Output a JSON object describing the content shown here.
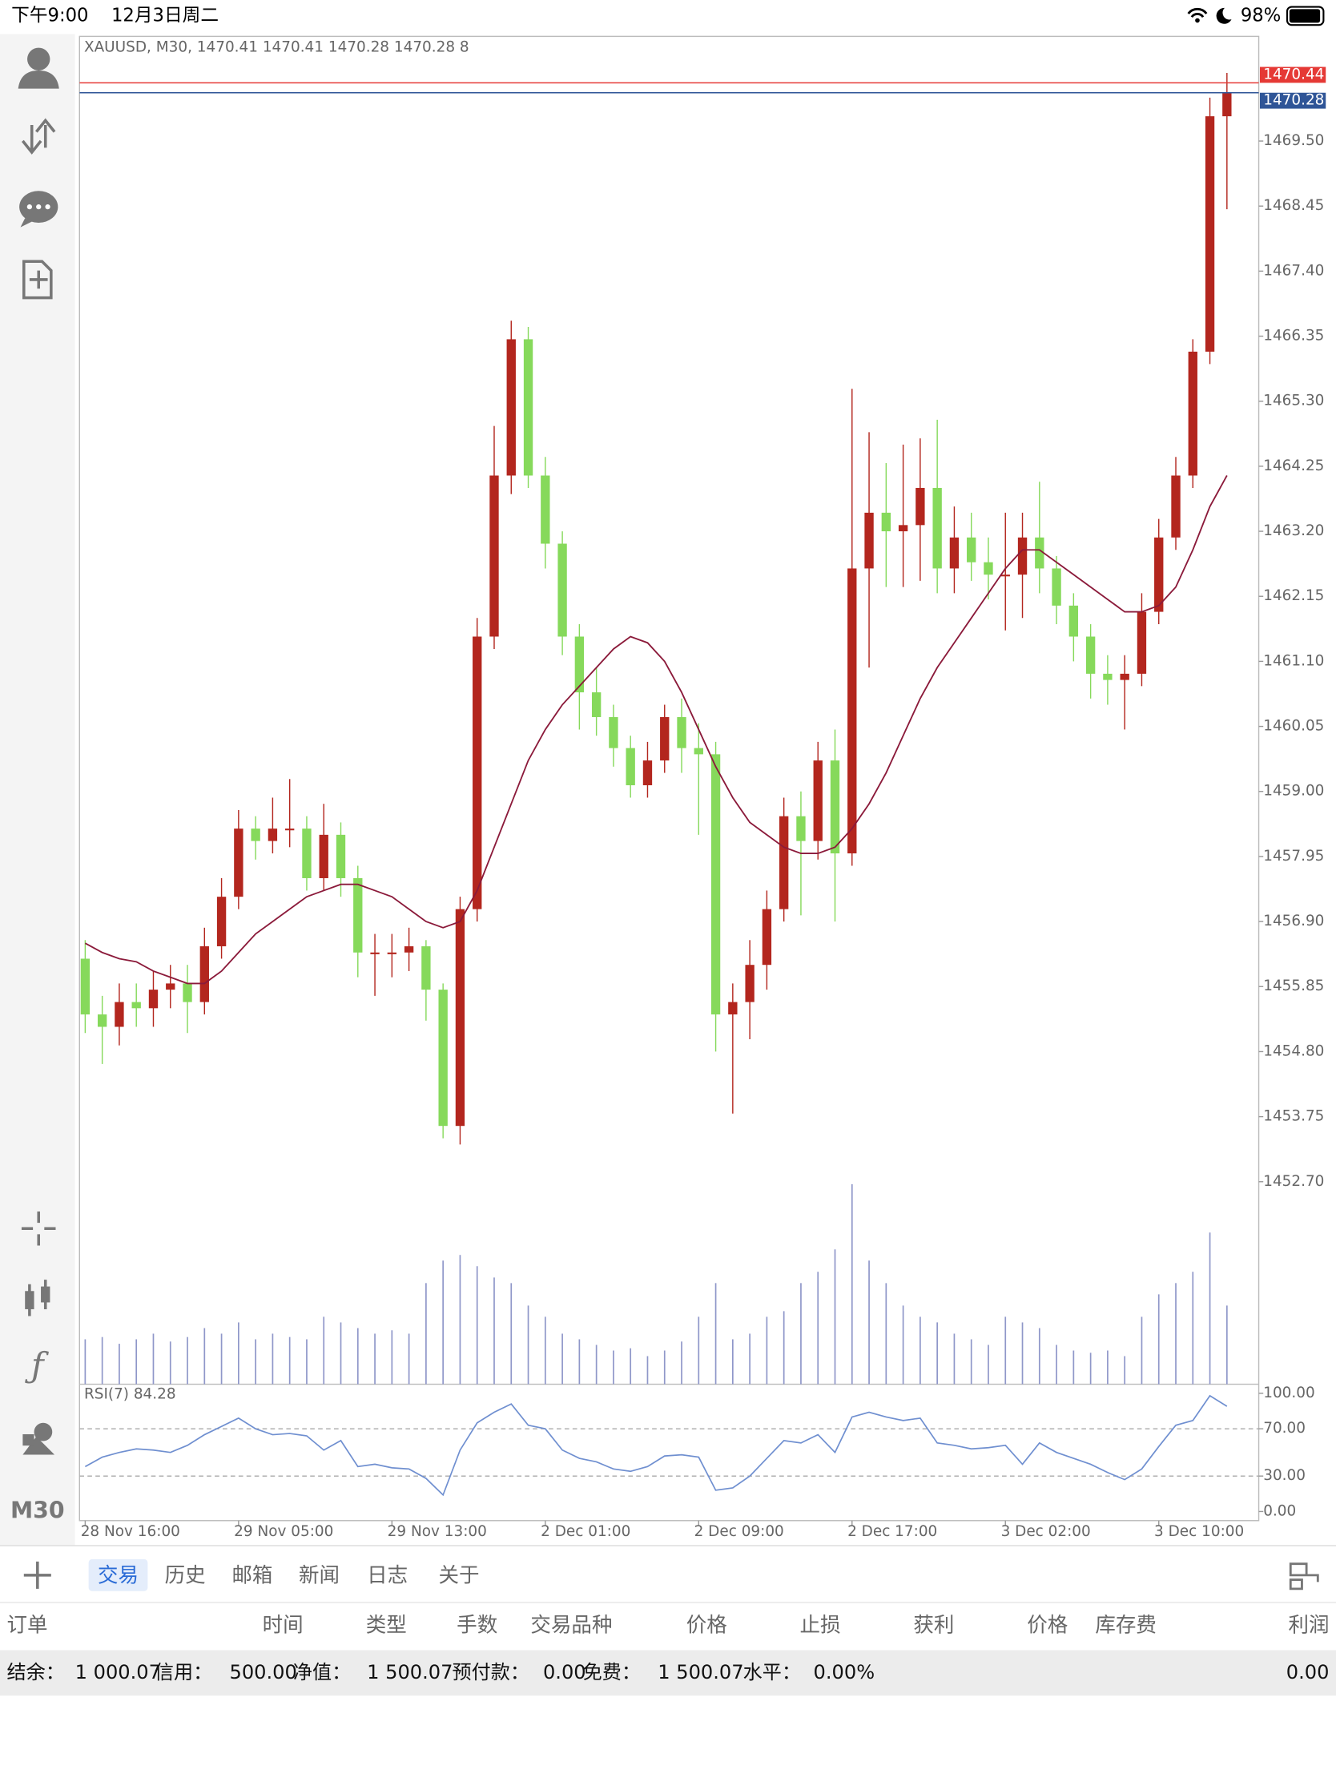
{
  "status_bar": {
    "time": "下午9:00",
    "date": "12月3日周二",
    "battery": "98%"
  },
  "toolbar": {
    "timeframe": "M30"
  },
  "chart_data": {
    "type": "candlestick",
    "title": "XAUUSD, M30, 1470.41 1470.41 1470.28 1470.28 8",
    "categories": [
      "28 Nov 16:00",
      null,
      null,
      null,
      null,
      null,
      null,
      null,
      null,
      "29 Nov 05:00",
      null,
      null,
      null,
      null,
      null,
      null,
      null,
      null,
      "29 Nov 13:00",
      null,
      null,
      null,
      null,
      null,
      null,
      null,
      null,
      "2 Dec 01:00",
      null,
      null,
      null,
      null,
      null,
      null,
      null,
      null,
      "2 Dec 09:00",
      null,
      null,
      null,
      null,
      null,
      null,
      null,
      null,
      "2 Dec 17:00",
      null,
      null,
      null,
      null,
      null,
      null,
      null,
      null,
      "3 Dec 02:00",
      null,
      null,
      null,
      null,
      null,
      null,
      null,
      null,
      "3 Dec 10:00",
      null,
      null,
      null,
      null
    ],
    "open": [
      1456.3,
      1455.4,
      1455.2,
      1455.6,
      1455.5,
      1455.8,
      1455.9,
      1455.6,
      1456.5,
      1457.3,
      1458.4,
      1458.2,
      1458.4,
      1458.4,
      1457.6,
      1458.3,
      1457.6,
      1456.4,
      1456.4,
      1456.4,
      1456.5,
      1455.8,
      1453.6,
      1457.1,
      1461.5,
      1464.1,
      1466.3,
      1464.1,
      1463.0,
      1461.5,
      1460.6,
      1460.2,
      1459.7,
      1459.1,
      1459.5,
      1460.2,
      1459.7,
      1459.6,
      1455.4,
      1455.6,
      1456.2,
      1457.1,
      1458.6,
      1458.2,
      1459.5,
      1458.0,
      1462.6,
      1463.5,
      1463.2,
      1463.3,
      1463.9,
      1462.6,
      1463.1,
      1462.7,
      1462.5,
      1462.5,
      1463.1,
      1462.6,
      1462.0,
      1461.5,
      1460.9,
      1460.8,
      1460.9,
      1461.9,
      1463.1,
      1464.1,
      1466.1,
      1469.9
    ],
    "high": [
      1456.6,
      1455.7,
      1455.9,
      1455.9,
      1456.1,
      1456.2,
      1456.2,
      1456.8,
      1457.6,
      1458.7,
      1458.6,
      1458.9,
      1459.2,
      1458.6,
      1458.8,
      1458.5,
      1457.8,
      1456.7,
      1456.7,
      1456.8,
      1456.6,
      1455.9,
      1457.3,
      1461.8,
      1464.9,
      1466.6,
      1466.5,
      1464.4,
      1463.2,
      1461.7,
      1461.0,
      1460.4,
      1459.9,
      1459.8,
      1460.4,
      1460.5,
      1460.1,
      1459.8,
      1455.9,
      1456.6,
      1457.4,
      1458.9,
      1459.0,
      1459.8,
      1460.0,
      1465.5,
      1464.8,
      1464.3,
      1464.6,
      1464.7,
      1465.0,
      1463.6,
      1463.5,
      1463.1,
      1463.5,
      1463.5,
      1464.0,
      1462.8,
      1462.2,
      1461.7,
      1461.2,
      1461.2,
      1462.2,
      1463.4,
      1464.4,
      1466.3,
      1470.2,
      1470.6
    ],
    "low": [
      1455.1,
      1454.6,
      1454.9,
      1455.2,
      1455.2,
      1455.5,
      1455.1,
      1455.4,
      1456.3,
      1457.1,
      1457.9,
      1458.0,
      1458.1,
      1457.4,
      1457.4,
      1457.3,
      1456.0,
      1455.7,
      1456.0,
      1456.1,
      1455.3,
      1453.4,
      1453.3,
      1456.9,
      1461.3,
      1463.8,
      1463.9,
      1462.6,
      1461.2,
      1460.0,
      1459.9,
      1459.4,
      1458.9,
      1458.9,
      1459.3,
      1459.3,
      1458.3,
      1454.8,
      1453.8,
      1455.0,
      1455.8,
      1456.9,
      1457.0,
      1457.9,
      1456.9,
      1457.8,
      1461.0,
      1462.3,
      1462.3,
      1462.4,
      1462.2,
      1462.2,
      1462.4,
      1462.1,
      1461.6,
      1461.8,
      1462.2,
      1461.7,
      1461.1,
      1460.5,
      1460.4,
      1460.0,
      1460.7,
      1461.7,
      1462.9,
      1463.9,
      1465.9,
      1468.4
    ],
    "close": [
      1455.4,
      1455.2,
      1455.6,
      1455.5,
      1455.8,
      1455.9,
      1455.6,
      1456.5,
      1457.3,
      1458.4,
      1458.2,
      1458.4,
      1458.4,
      1457.6,
      1458.3,
      1457.6,
      1456.4,
      1456.4,
      1456.4,
      1456.5,
      1455.8,
      1453.6,
      1457.1,
      1461.5,
      1464.1,
      1466.3,
      1464.1,
      1463.0,
      1461.5,
      1460.6,
      1460.2,
      1459.7,
      1459.1,
      1459.5,
      1460.2,
      1459.7,
      1459.6,
      1455.4,
      1455.6,
      1456.2,
      1457.1,
      1458.6,
      1458.2,
      1459.5,
      1458.0,
      1462.6,
      1463.5,
      1463.2,
      1463.3,
      1463.9,
      1462.6,
      1463.1,
      1462.7,
      1462.5,
      1462.5,
      1463.1,
      1462.6,
      1462.0,
      1461.5,
      1460.9,
      1460.8,
      1460.9,
      1461.9,
      1463.1,
      1464.1,
      1466.1,
      1469.9,
      1470.28
    ],
    "up_color": "#b3261e",
    "down_color": "#86d95b",
    "ma": {
      "color": "#8b1a3a",
      "values": [
        1456.55,
        1456.4,
        1456.3,
        1456.25,
        1456.1,
        1456.0,
        1455.9,
        1455.9,
        1456.1,
        1456.4,
        1456.7,
        1456.9,
        1457.1,
        1457.3,
        1457.4,
        1457.5,
        1457.5,
        1457.4,
        1457.3,
        1457.1,
        1456.9,
        1456.8,
        1456.9,
        1457.4,
        1458.1,
        1458.8,
        1459.5,
        1460.0,
        1460.4,
        1460.7,
        1461.0,
        1461.3,
        1461.5,
        1461.4,
        1461.1,
        1460.6,
        1460.0,
        1459.4,
        1458.9,
        1458.5,
        1458.3,
        1458.1,
        1458.0,
        1458.0,
        1458.1,
        1458.4,
        1458.8,
        1459.3,
        1459.9,
        1460.5,
        1461.0,
        1461.4,
        1461.8,
        1462.2,
        1462.6,
        1462.9,
        1462.9,
        1462.7,
        1462.5,
        1462.3,
        1462.1,
        1461.9,
        1461.9,
        1462.0,
        1462.3,
        1462.9,
        1463.6,
        1464.1
      ]
    },
    "volume": {
      "color": "#8f97c9",
      "ylim": [
        0,
        180
      ],
      "values": [
        40,
        42,
        36,
        40,
        45,
        38,
        42,
        50,
        45,
        55,
        40,
        45,
        42,
        40,
        60,
        55,
        50,
        45,
        48,
        45,
        90,
        110,
        115,
        105,
        95,
        90,
        70,
        60,
        45,
        40,
        35,
        30,
        32,
        25,
        30,
        38,
        60,
        90,
        40,
        45,
        60,
        65,
        90,
        100,
        120,
        178,
        110,
        90,
        70,
        60,
        55,
        45,
        40,
        35,
        60,
        55,
        50,
        35,
        30,
        28,
        30,
        25,
        60,
        80,
        90,
        100,
        135,
        70
      ]
    },
    "ylim": [
      1449.43,
      1471.19
    ],
    "yticks": [
      {
        "value": 1469.5,
        "label": "1469.50"
      },
      {
        "value": 1468.45,
        "label": "1468.45"
      },
      {
        "value": 1467.4,
        "label": "1467.40"
      },
      {
        "value": 1466.35,
        "label": "1466.35"
      },
      {
        "value": 1465.3,
        "label": "1465.30"
      },
      {
        "value": 1464.25,
        "label": "1464.25"
      },
      {
        "value": 1463.2,
        "label": "1463.20"
      },
      {
        "value": 1462.15,
        "label": "1462.15"
      },
      {
        "value": 1461.1,
        "label": "1461.10"
      },
      {
        "value": 1460.05,
        "label": "1460.05"
      },
      {
        "value": 1459,
        "label": "1459.00"
      },
      {
        "value": 1457.95,
        "label": "1457.95"
      },
      {
        "value": 1456.9,
        "label": "1456.90"
      },
      {
        "value": 1455.85,
        "label": "1455.85"
      },
      {
        "value": 1454.8,
        "label": "1454.80"
      },
      {
        "value": 1453.75,
        "label": "1453.75"
      },
      {
        "value": 1452.7,
        "label": "1452.70"
      }
    ],
    "price_lines": [
      {
        "value": 1470.44,
        "color": "#e53935"
      },
      {
        "value": 1470.28,
        "color": "#2f5597"
      }
    ],
    "rsi": {
      "title": "RSI(7) 84.28",
      "color": "#6f8fd0",
      "ylim": [
        0,
        100
      ],
      "levels": [
        30,
        70
      ],
      "yticks": [
        {
          "value": 0,
          "label": "0.00"
        },
        {
          "value": 30,
          "label": "30.00"
        },
        {
          "value": 70,
          "label": "70.00"
        },
        {
          "value": 100,
          "label": "100.00"
        }
      ],
      "values": [
        38,
        46,
        50,
        53,
        52,
        50,
        56,
        65,
        72,
        79,
        70,
        65,
        66,
        64,
        52,
        60,
        38,
        40,
        37,
        36,
        28,
        14,
        52,
        75,
        84,
        91,
        73,
        70,
        52,
        45,
        42,
        36,
        34,
        38,
        47,
        48,
        46,
        18,
        20,
        30,
        45,
        60,
        58,
        65,
        50,
        80,
        84,
        80,
        77,
        79,
        58,
        56,
        53,
        54,
        56,
        40,
        58,
        50,
        45,
        40,
        33,
        27,
        36,
        55,
        73,
        77,
        98,
        89
      ]
    }
  },
  "tabs": {
    "items": [
      "交易",
      "历史",
      "邮箱",
      "新闻",
      "日志",
      "关于"
    ],
    "selected": 0
  },
  "table": {
    "columns": [
      "订单",
      "时间",
      "类型",
      "手数",
      "交易品种",
      "价格",
      "止损",
      "获利",
      "价格",
      "库存费",
      "利润"
    ]
  },
  "summary": {
    "items": [
      "结余：",
      "1 000.07",
      "信用：",
      "500.00",
      "净值：",
      "1 500.07",
      "预付款：",
      "0.00",
      "免费：",
      "1 500.07",
      "水平：",
      "0.00%"
    ],
    "profit": "0.00"
  }
}
